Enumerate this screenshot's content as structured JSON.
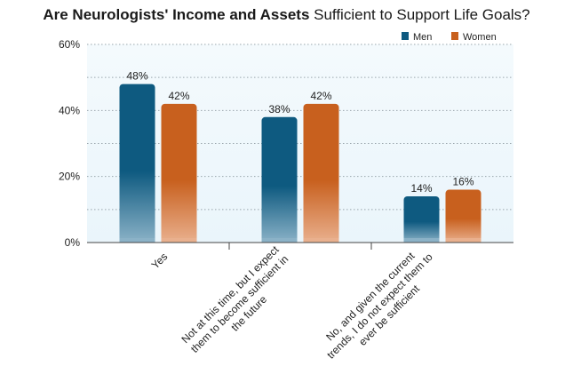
{
  "title": {
    "bold_part": "Are Neurologists' Income and Assets",
    "rest_part": " Sufficient to Support Life Goals?"
  },
  "colors": {
    "men": "#0e5a80",
    "women": "#c8601e",
    "plot_bg": "#eaf5fb",
    "grid": "#9aa6ad"
  },
  "chart_data": {
    "type": "bar",
    "title": "Are Neurologists' Income and Assets Sufficient to Support Life Goals?",
    "categories": [
      "Yes",
      "Not at this time, but I expect them to become sufficient in the future",
      "No, and given the current trends, I do not expect them to ever be sufficient"
    ],
    "category_lines": [
      [
        "Yes"
      ],
      [
        "Not at this time, but I expect",
        "them to become sufficient in",
        "the future"
      ],
      [
        "No, and given the current",
        "trends, I do not expect them to",
        "ever be sufficient"
      ]
    ],
    "series": [
      {
        "name": "Men",
        "values": [
          48,
          38,
          14
        ]
      },
      {
        "name": "Women",
        "values": [
          42,
          42,
          16
        ]
      }
    ],
    "data_labels": [
      [
        "48%",
        "38%",
        "14%"
      ],
      [
        "42%",
        "42%",
        "16%"
      ]
    ],
    "yticks": [
      "0%",
      "20%",
      "40%",
      "60%"
    ],
    "ytick_values": [
      0,
      20,
      40,
      60
    ],
    "ylim": [
      0,
      60
    ],
    "xlabel": "",
    "ylabel": "",
    "grid": true,
    "legend_position": "top-right"
  }
}
